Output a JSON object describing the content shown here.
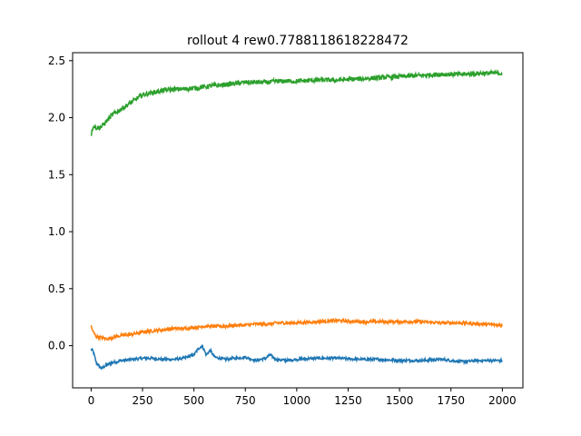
{
  "chart_data": {
    "type": "line",
    "title": "rollout 4 rew0.7788118618228472",
    "xlabel": "",
    "ylabel": "",
    "xlim": [
      -90,
      2100
    ],
    "ylim": [
      -0.37,
      2.57
    ],
    "grid": false,
    "x_ticks": [
      0,
      250,
      500,
      750,
      1000,
      1250,
      1500,
      1750,
      2000
    ],
    "x_tick_labels": [
      "0",
      "250",
      "500",
      "750",
      "1000",
      "1250",
      "1500",
      "1750",
      "2000"
    ],
    "y_ticks": [
      0.0,
      0.5,
      1.0,
      1.5,
      2.0,
      2.5
    ],
    "y_tick_labels": [
      "0.0",
      "0.5",
      "1.0",
      "1.5",
      "2.0",
      "2.5"
    ],
    "x": [
      0,
      10,
      25,
      50,
      75,
      100,
      150,
      200,
      250,
      300,
      350,
      400,
      450,
      500,
      520,
      540,
      560,
      580,
      600,
      650,
      700,
      750,
      800,
      850,
      870,
      900,
      950,
      1000,
      1100,
      1200,
      1300,
      1400,
      1500,
      1600,
      1700,
      1800,
      1900,
      2000
    ],
    "series": [
      {
        "color": "#1f77b4",
        "noise": 0.012,
        "values": [
          -0.03,
          -0.05,
          -0.15,
          -0.2,
          -0.17,
          -0.15,
          -0.13,
          -0.12,
          -0.11,
          -0.11,
          -0.12,
          -0.12,
          -0.11,
          -0.08,
          -0.03,
          0.0,
          -0.08,
          -0.04,
          -0.1,
          -0.12,
          -0.11,
          -0.1,
          -0.13,
          -0.11,
          -0.08,
          -0.12,
          -0.13,
          -0.12,
          -0.11,
          -0.11,
          -0.12,
          -0.12,
          -0.13,
          -0.13,
          -0.12,
          -0.14,
          -0.13,
          -0.13
        ]
      },
      {
        "color": "#ff7f0e",
        "noise": 0.014,
        "values": [
          0.17,
          0.12,
          0.08,
          0.07,
          0.06,
          0.07,
          0.09,
          0.1,
          0.12,
          0.13,
          0.14,
          0.15,
          0.15,
          0.16,
          0.16,
          0.17,
          0.17,
          0.17,
          0.17,
          0.17,
          0.18,
          0.18,
          0.19,
          0.19,
          0.19,
          0.2,
          0.2,
          0.2,
          0.21,
          0.22,
          0.21,
          0.21,
          0.21,
          0.21,
          0.2,
          0.2,
          0.19,
          0.18
        ]
      },
      {
        "color": "#2ca02c",
        "noise": 0.02,
        "values": [
          1.85,
          1.93,
          1.91,
          1.92,
          1.97,
          2.02,
          2.08,
          2.14,
          2.2,
          2.22,
          2.24,
          2.25,
          2.25,
          2.26,
          2.26,
          2.27,
          2.27,
          2.28,
          2.28,
          2.29,
          2.3,
          2.31,
          2.31,
          2.31,
          2.31,
          2.32,
          2.32,
          2.32,
          2.33,
          2.33,
          2.34,
          2.35,
          2.36,
          2.37,
          2.38,
          2.38,
          2.39,
          2.39
        ]
      }
    ]
  }
}
